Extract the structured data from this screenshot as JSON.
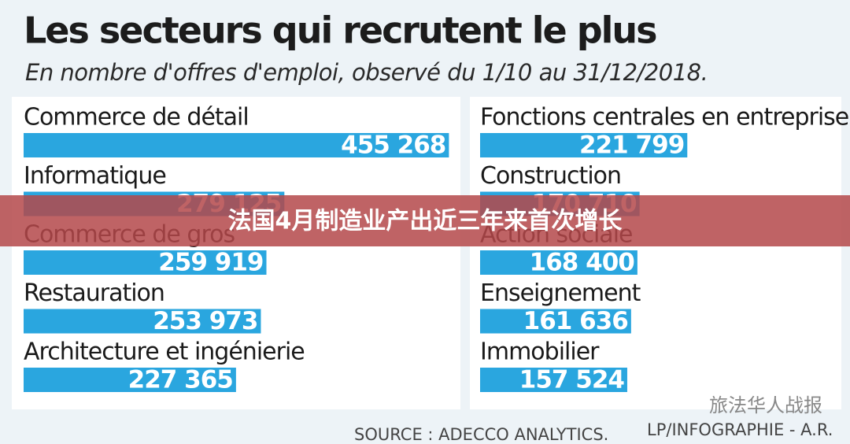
{
  "title": "Les secteurs qui recrutent le plus",
  "subtitle": "En nombre d'offres d'emploi, observé du 1/10 au 31/12/2018.",
  "chart_data": [
    {
      "type": "bar",
      "categories": [
        "Commerce de détail",
        "Informatique",
        "Commerce de gros",
        "Restauration",
        "Architecture et ingénierie"
      ],
      "values": [
        455268,
        279125,
        259919,
        253973,
        227365
      ],
      "value_labels": [
        "455 268",
        "279 125",
        "259 919",
        "253 973",
        "227 365"
      ],
      "color": "#2aa6df",
      "xlim": [
        0,
        460000
      ]
    },
    {
      "type": "bar",
      "categories": [
        "Fonctions centrales en entreprise",
        "Construction",
        "Action sociale",
        "Enseignement",
        "Immobilier"
      ],
      "values": [
        221799,
        170710,
        168400,
        161636,
        157524
      ],
      "value_labels": [
        "221 799",
        "170 710",
        "168 400",
        "161 636",
        "157 524"
      ],
      "color": "#2aa6df",
      "xlim": [
        0,
        460000
      ]
    }
  ],
  "banner": "法国4月制造业产出近三年来首次增长",
  "source": "SOURCE : ADECCO ANALYTICS.",
  "credit": "LP/INFOGRAPHIE - A.R.",
  "watermark": "旅法华人战报"
}
